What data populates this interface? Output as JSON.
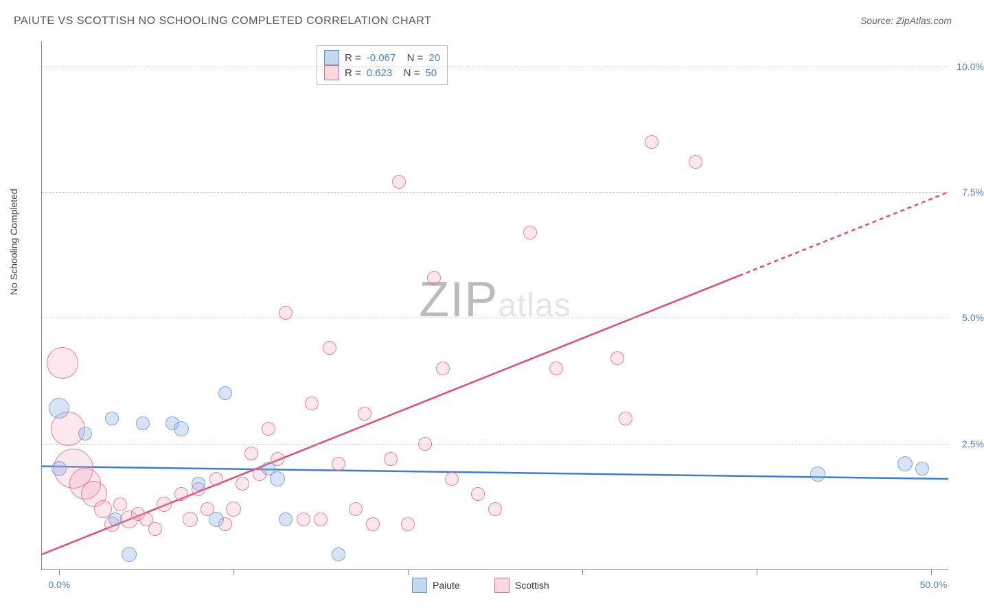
{
  "title": "PAIUTE VS SCOTTISH NO SCHOOLING COMPLETED CORRELATION CHART",
  "source": "Source: ZipAtlas.com",
  "watermark": {
    "bold": "ZIP",
    "rest": "atlas"
  },
  "y_axis": {
    "label": "No Schooling Completed",
    "min": 0.0,
    "max": 10.5,
    "ticks": [
      {
        "v": 2.5,
        "label": "2.5%"
      },
      {
        "v": 5.0,
        "label": "5.0%"
      },
      {
        "v": 7.5,
        "label": "7.5%"
      },
      {
        "v": 10.0,
        "label": "10.0%"
      }
    ]
  },
  "x_axis": {
    "min": -1.0,
    "max": 51.0,
    "ticks_at": [
      0,
      10,
      20,
      30,
      40,
      50
    ],
    "labels": [
      {
        "v": 0.0,
        "label": "0.0%"
      },
      {
        "v": 50.0,
        "label": "50.0%"
      }
    ]
  },
  "correlation_legend": {
    "rows": [
      {
        "series": "paiute",
        "R": "-0.067",
        "N": "20"
      },
      {
        "series": "scottish",
        "R": "0.623",
        "N": "50"
      }
    ]
  },
  "footer_legend": [
    {
      "series": "paiute",
      "label": "Paiute"
    },
    {
      "series": "scottish",
      "label": "Scottish"
    }
  ],
  "colors": {
    "paiute_line": "#3d7bd9",
    "scottish_line": "#e74a7a",
    "tick_text": "#4a7fd8",
    "grid": "#cccccc",
    "axis": "#888888"
  },
  "trend_lines": {
    "paiute": {
      "x1": -1,
      "y1": 2.05,
      "x2": 51,
      "y2": 1.8,
      "dash_after": null
    },
    "scottish": {
      "x1": -1,
      "y1": 0.3,
      "x2": 51,
      "y2": 7.5,
      "dash_after": 39
    }
  },
  "series": {
    "paiute": {
      "color": "blue",
      "points": [
        {
          "x": 0.0,
          "y": 3.2,
          "r": 14
        },
        {
          "x": 0.0,
          "y": 2.0,
          "r": 10
        },
        {
          "x": 1.5,
          "y": 2.7,
          "r": 9
        },
        {
          "x": 3.0,
          "y": 3.0,
          "r": 9
        },
        {
          "x": 3.2,
          "y": 1.0,
          "r": 9
        },
        {
          "x": 4.8,
          "y": 2.9,
          "r": 9
        },
        {
          "x": 4.0,
          "y": 0.3,
          "r": 10
        },
        {
          "x": 6.5,
          "y": 2.9,
          "r": 9
        },
        {
          "x": 7.0,
          "y": 2.8,
          "r": 10
        },
        {
          "x": 8.0,
          "y": 1.7,
          "r": 9
        },
        {
          "x": 9.5,
          "y": 3.5,
          "r": 9
        },
        {
          "x": 9.0,
          "y": 1.0,
          "r": 10
        },
        {
          "x": 12.0,
          "y": 2.0,
          "r": 9
        },
        {
          "x": 12.5,
          "y": 1.8,
          "r": 10
        },
        {
          "x": 13.0,
          "y": 1.0,
          "r": 9
        },
        {
          "x": 16.0,
          "y": 0.3,
          "r": 9
        },
        {
          "x": 43.5,
          "y": 1.9,
          "r": 10
        },
        {
          "x": 48.5,
          "y": 2.1,
          "r": 10
        },
        {
          "x": 49.5,
          "y": 2.0,
          "r": 9
        }
      ]
    },
    "scottish": {
      "color": "pink",
      "points": [
        {
          "x": 0.2,
          "y": 4.1,
          "r": 22
        },
        {
          "x": 0.5,
          "y": 2.8,
          "r": 24
        },
        {
          "x": 0.8,
          "y": 2.0,
          "r": 28
        },
        {
          "x": 1.5,
          "y": 1.7,
          "r": 22
        },
        {
          "x": 2.0,
          "y": 1.5,
          "r": 18
        },
        {
          "x": 2.5,
          "y": 1.2,
          "r": 12
        },
        {
          "x": 3.0,
          "y": 0.9,
          "r": 10
        },
        {
          "x": 3.5,
          "y": 1.3,
          "r": 9
        },
        {
          "x": 4.0,
          "y": 1.0,
          "r": 12
        },
        {
          "x": 4.5,
          "y": 1.1,
          "r": 9
        },
        {
          "x": 5.0,
          "y": 1.0,
          "r": 9
        },
        {
          "x": 5.5,
          "y": 0.8,
          "r": 9
        },
        {
          "x": 6.0,
          "y": 1.3,
          "r": 10
        },
        {
          "x": 7.0,
          "y": 1.5,
          "r": 9
        },
        {
          "x": 7.5,
          "y": 1.0,
          "r": 10
        },
        {
          "x": 8.0,
          "y": 1.6,
          "r": 9
        },
        {
          "x": 8.5,
          "y": 1.2,
          "r": 9
        },
        {
          "x": 9.0,
          "y": 1.8,
          "r": 9
        },
        {
          "x": 9.5,
          "y": 0.9,
          "r": 9
        },
        {
          "x": 10.0,
          "y": 1.2,
          "r": 10
        },
        {
          "x": 10.5,
          "y": 1.7,
          "r": 9
        },
        {
          "x": 11.0,
          "y": 2.3,
          "r": 9
        },
        {
          "x": 11.5,
          "y": 1.9,
          "r": 9
        },
        {
          "x": 12.0,
          "y": 2.8,
          "r": 9
        },
        {
          "x": 12.5,
          "y": 2.2,
          "r": 9
        },
        {
          "x": 13.0,
          "y": 5.1,
          "r": 9
        },
        {
          "x": 14.0,
          "y": 1.0,
          "r": 9
        },
        {
          "x": 14.5,
          "y": 3.3,
          "r": 9
        },
        {
          "x": 15.0,
          "y": 1.0,
          "r": 9
        },
        {
          "x": 15.5,
          "y": 4.4,
          "r": 9
        },
        {
          "x": 16.0,
          "y": 2.1,
          "r": 9
        },
        {
          "x": 17.0,
          "y": 1.2,
          "r": 9
        },
        {
          "x": 17.5,
          "y": 3.1,
          "r": 9
        },
        {
          "x": 18.0,
          "y": 0.9,
          "r": 9
        },
        {
          "x": 19.0,
          "y": 2.2,
          "r": 9
        },
        {
          "x": 19.5,
          "y": 7.7,
          "r": 9
        },
        {
          "x": 20.0,
          "y": 0.9,
          "r": 9
        },
        {
          "x": 21.0,
          "y": 2.5,
          "r": 9
        },
        {
          "x": 21.5,
          "y": 5.8,
          "r": 9
        },
        {
          "x": 22.0,
          "y": 4.0,
          "r": 9
        },
        {
          "x": 22.5,
          "y": 1.8,
          "r": 9
        },
        {
          "x": 24.0,
          "y": 1.5,
          "r": 9
        },
        {
          "x": 25.0,
          "y": 1.2,
          "r": 9
        },
        {
          "x": 27.0,
          "y": 6.7,
          "r": 9
        },
        {
          "x": 28.5,
          "y": 4.0,
          "r": 9
        },
        {
          "x": 32.0,
          "y": 4.2,
          "r": 9
        },
        {
          "x": 32.5,
          "y": 3.0,
          "r": 9
        },
        {
          "x": 34.0,
          "y": 8.5,
          "r": 9
        },
        {
          "x": 36.5,
          "y": 8.1,
          "r": 9
        }
      ]
    }
  }
}
